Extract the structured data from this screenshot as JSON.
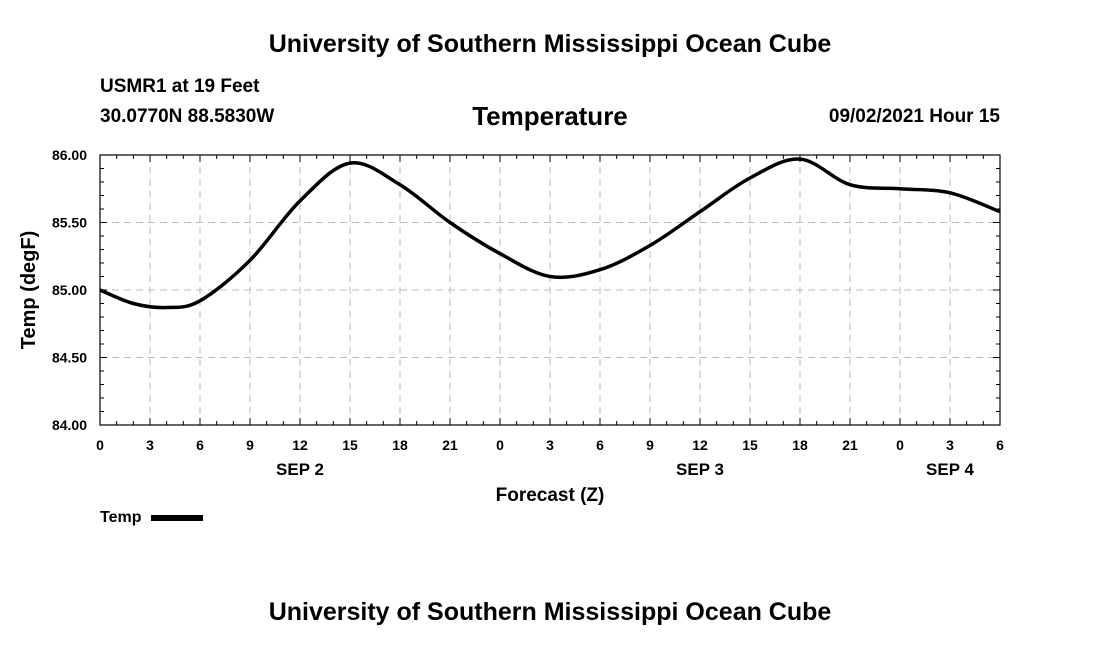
{
  "header": {
    "top_title": "University of Southern Mississippi Ocean Cube",
    "station": "USMR1 at 19 Feet",
    "coords": "30.0770N  88.5830W",
    "chart_title": "Temperature",
    "datetime": "09/02/2021 Hour 15",
    "bottom_title": "University of Southern Mississippi Ocean Cube"
  },
  "legend": {
    "label": "Temp"
  },
  "chart_data": {
    "type": "line",
    "title": "Temperature",
    "xlabel": "Forecast (Z)",
    "ylabel": "Temp (degF)",
    "ylim": [
      84.0,
      86.0
    ],
    "yticks": [
      "84.00",
      "84.50",
      "85.00",
      "85.50",
      "86.00"
    ],
    "xlim": [
      0,
      54
    ],
    "xticks": [
      "0",
      "3",
      "6",
      "9",
      "12",
      "15",
      "18",
      "21",
      "0",
      "3",
      "6",
      "9",
      "12",
      "15",
      "18",
      "21",
      "0",
      "3",
      "6"
    ],
    "day_labels": [
      {
        "label": "SEP 2",
        "hour": 12
      },
      {
        "label": "SEP 3",
        "hour": 36
      },
      {
        "label": "SEP 4",
        "hour": 51
      }
    ],
    "grid": true,
    "series": [
      {
        "name": "Temp",
        "x": [
          0,
          2,
          4,
          6,
          9,
          12,
          15,
          18,
          21,
          24,
          27,
          30,
          33,
          36,
          39,
          42,
          45,
          48,
          51,
          54
        ],
        "values": [
          85.0,
          84.9,
          84.87,
          84.92,
          85.22,
          85.66,
          85.94,
          85.78,
          85.5,
          85.27,
          85.1,
          85.15,
          85.33,
          85.58,
          85.83,
          85.97,
          85.78,
          85.75,
          85.72,
          85.58
        ]
      }
    ]
  }
}
